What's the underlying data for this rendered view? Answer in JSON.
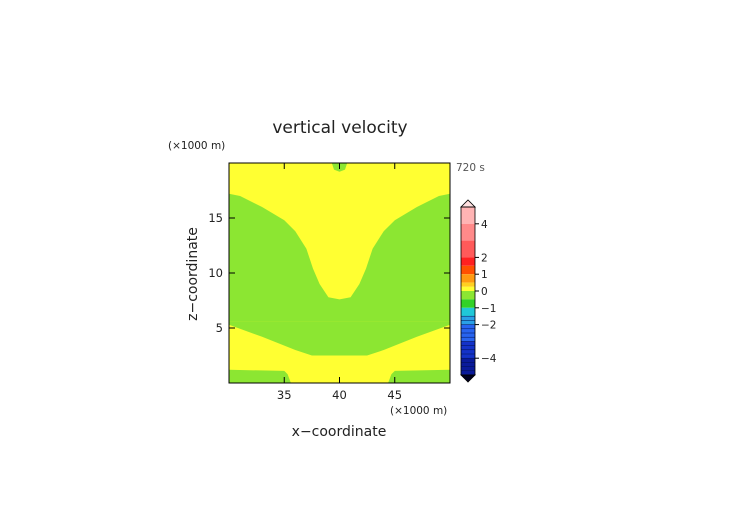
{
  "chart_data": {
    "type": "contour",
    "title": "vertical velocity",
    "xlabel": "x−coordinate",
    "ylabel": "z−coordinate",
    "x_unit": "(×1000 m)",
    "y_unit": "(×1000 m)",
    "time_label": "720 s",
    "xlim": [
      30,
      50
    ],
    "ylim": [
      0,
      20
    ],
    "xticks": [
      35,
      40,
      45
    ],
    "yticks": [
      5,
      10,
      15
    ],
    "x_tick_labels": [
      "35",
      "40",
      "45"
    ],
    "y_tick_labels": [
      "5",
      "10",
      "15"
    ],
    "colorbar": {
      "ticks": [
        4,
        2,
        1,
        0,
        -1,
        -2,
        -4
      ],
      "tick_labels": [
        "4",
        "2",
        "1",
        "0",
        "−1",
        "−2",
        "−4"
      ],
      "bands": [
        {
          "value": 5,
          "color": "#ffb4b4"
        },
        {
          "value": 4,
          "color": "#ff8a8a"
        },
        {
          "value": 3,
          "color": "#ff5a5a"
        },
        {
          "value": 2,
          "color": "#ff2020"
        },
        {
          "value": 1.5,
          "color": "#ff5000"
        },
        {
          "value": 1,
          "color": "#ff9a10"
        },
        {
          "value": 0.5,
          "color": "#ffd020"
        },
        {
          "value": 0.25,
          "color": "#ffff32"
        },
        {
          "value": 0,
          "color": "#8ce632"
        },
        {
          "value": -0.5,
          "color": "#32d228"
        },
        {
          "value": -1,
          "color": "#20c8d8"
        },
        {
          "value": -1.5,
          "color": "#2aa0e6"
        },
        {
          "value": -2,
          "color": "#2864f0"
        },
        {
          "value": -3,
          "color": "#1432c8"
        },
        {
          "value": -4,
          "color": "#0a1a9a"
        },
        {
          "value": -5,
          "color": "#000050"
        }
      ],
      "over_color": "#ffe0e0",
      "under_color": "#000020"
    },
    "fields": {
      "background_value_color": "#ffff32",
      "region_color": "#8ce632"
    },
    "regions": [
      {
        "name": "upper-green-region",
        "band": "0 to -0.5",
        "x": [
          30,
          31,
          33,
          35,
          36,
          37,
          37.6,
          38.2,
          39,
          40,
          41,
          41.8,
          42.4,
          43,
          44,
          45,
          47,
          49,
          50,
          50,
          30
        ],
        "y": [
          17.2,
          17,
          16,
          14.8,
          13.8,
          12.2,
          10.4,
          9,
          7.8,
          7.6,
          7.8,
          9,
          10.4,
          12.2,
          13.8,
          14.8,
          16,
          17,
          17.2,
          5.6,
          5.6
        ]
      },
      {
        "name": "mid-green-band",
        "band": "0 to -0.5",
        "x": [
          30,
          50,
          50,
          47,
          44,
          42.5,
          37.5,
          36,
          33,
          30
        ],
        "y": [
          5.6,
          5.6,
          5.3,
          4.2,
          3.0,
          2.5,
          2.5,
          3.0,
          4.2,
          5.3
        ]
      },
      {
        "name": "top-green-bump",
        "band": "0 to -0.5",
        "x": [
          39.3,
          39.5,
          40,
          40.5,
          40.7
        ],
        "y": [
          20,
          19.4,
          19.2,
          19.4,
          20
        ]
      },
      {
        "name": "bottom-green-strip",
        "band": "0 to -0.5",
        "x": [
          30,
          35,
          35.3,
          35.6,
          44.4,
          44.7,
          45,
          50,
          50,
          30
        ],
        "y": [
          1.2,
          1.1,
          0.8,
          0.0,
          0.0,
          0.8,
          1.1,
          1.2,
          0,
          0
        ]
      }
    ]
  }
}
